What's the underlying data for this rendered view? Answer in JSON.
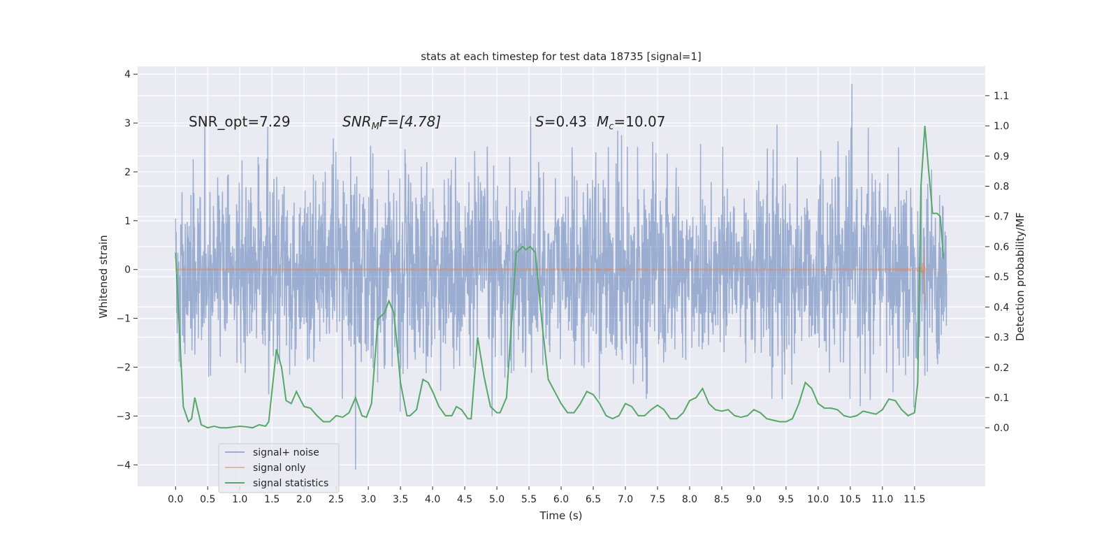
{
  "chart_data": {
    "type": "line",
    "title": "stats at each timestep for test data 18735 [signal=1]",
    "xlabel": "Time (s)",
    "ylabel": "Whitened strain",
    "ylabel_right": "Detection probability/MF",
    "xlim": [
      -0.59,
      12.6
    ],
    "ylim": [
      -4.44,
      4.16
    ],
    "ylim_right": [
      -0.194,
      1.197
    ],
    "grid": true,
    "x_ticks": [
      "0.0",
      "0.5",
      "1.0",
      "1.5",
      "2.0",
      "2.5",
      "3.0",
      "3.5",
      "4.0",
      "4.5",
      "5.0",
      "5.5",
      "6.0",
      "6.5",
      "7.0",
      "7.5",
      "8.0",
      "8.5",
      "9.0",
      "9.5",
      "10.0",
      "10.5",
      "11.0",
      "11.5"
    ],
    "y_ticks": [
      "4",
      "3",
      "2",
      "1",
      "0",
      "−1",
      "−2",
      "−3",
      "−4"
    ],
    "y_ticks_right": [
      "1.1",
      "1.0",
      "0.9",
      "0.8",
      "0.7",
      "0.6",
      "0.5",
      "0.4",
      "0.3",
      "0.2",
      "0.1",
      "0.0"
    ],
    "annotations": {
      "snr_opt": "SNR_opt=7.29",
      "snr_mf_main": "SNR",
      "snr_mf_sub": "M",
      "snr_mf_rest": "F=[4.78]",
      "s_var": "S",
      "s_val": "=0.43",
      "mc_var": "M",
      "mc_sub": "c",
      "mc_val": "=10.07"
    },
    "legend": {
      "placement": "lower-left",
      "entries": [
        "signal+ noise",
        "signal only",
        "signal statistics"
      ]
    },
    "colors": {
      "noise": "#4c72b0",
      "signal": "#dd8452",
      "statistics": "#55a868",
      "background": "#eaeaf2"
    },
    "series": [
      {
        "name": "signal+ noise",
        "axis": "left",
        "description_range": [
          -4.1,
          3.8
        ],
        "t_range": [
          0,
          12
        ]
      },
      {
        "name": "signal only",
        "axis": "left",
        "peak_time": 11.65,
        "peak_amplitude": 1.0
      },
      {
        "name": "signal statistics",
        "axis": "right",
        "x": [
          0,
          0.12,
          0.2,
          0.25,
          0.3,
          0.4,
          0.5,
          0.6,
          0.7,
          0.8,
          1.0,
          1.1,
          1.2,
          1.3,
          1.4,
          1.45,
          1.5,
          1.57,
          1.65,
          1.72,
          1.8,
          1.88,
          1.95,
          2.0,
          2.1,
          2.2,
          2.3,
          2.4,
          2.5,
          2.6,
          2.7,
          2.8,
          2.9,
          2.97,
          3.05,
          3.15,
          3.25,
          3.32,
          3.4,
          3.5,
          3.6,
          3.65,
          3.75,
          3.85,
          3.93,
          4.0,
          4.1,
          4.2,
          4.3,
          4.37,
          4.45,
          4.55,
          4.6,
          4.7,
          4.8,
          4.9,
          5.0,
          5.05,
          5.15,
          5.3,
          5.4,
          5.45,
          5.52,
          5.6,
          5.7,
          5.8,
          5.9,
          6.0,
          6.1,
          6.2,
          6.3,
          6.4,
          6.5,
          6.6,
          6.7,
          6.8,
          6.9,
          7.0,
          7.1,
          7.2,
          7.3,
          7.4,
          7.5,
          7.6,
          7.7,
          7.8,
          7.9,
          8.0,
          8.1,
          8.2,
          8.3,
          8.4,
          8.5,
          8.6,
          8.7,
          8.8,
          8.9,
          9.0,
          9.1,
          9.2,
          9.3,
          9.4,
          9.5,
          9.6,
          9.7,
          9.8,
          9.9,
          10.0,
          10.1,
          10.2,
          10.3,
          10.4,
          10.5,
          10.6,
          10.7,
          10.8,
          10.9,
          11.0,
          11.1,
          11.2,
          11.3,
          11.4,
          11.5,
          11.55,
          11.6,
          11.66,
          11.72,
          11.78,
          11.85,
          11.9,
          11.95
        ],
        "y": [
          0.58,
          0.07,
          0.02,
          0.03,
          0.1,
          0.01,
          0.0,
          0.005,
          0.0,
          0.0,
          0.005,
          0.003,
          0.0,
          0.01,
          0.005,
          0.02,
          0.12,
          0.26,
          0.2,
          0.09,
          0.08,
          0.12,
          0.09,
          0.07,
          0.065,
          0.04,
          0.02,
          0.02,
          0.04,
          0.035,
          0.05,
          0.1,
          0.04,
          0.035,
          0.08,
          0.36,
          0.38,
          0.42,
          0.38,
          0.15,
          0.04,
          0.04,
          0.06,
          0.16,
          0.15,
          0.12,
          0.07,
          0.04,
          0.04,
          0.07,
          0.06,
          0.03,
          0.03,
          0.3,
          0.17,
          0.07,
          0.05,
          0.05,
          0.1,
          0.58,
          0.6,
          0.59,
          0.6,
          0.58,
          0.35,
          0.16,
          0.12,
          0.08,
          0.05,
          0.05,
          0.08,
          0.12,
          0.11,
          0.08,
          0.04,
          0.03,
          0.04,
          0.08,
          0.07,
          0.04,
          0.04,
          0.06,
          0.075,
          0.06,
          0.03,
          0.03,
          0.05,
          0.09,
          0.1,
          0.13,
          0.08,
          0.06,
          0.055,
          0.06,
          0.04,
          0.035,
          0.04,
          0.06,
          0.05,
          0.03,
          0.025,
          0.02,
          0.02,
          0.03,
          0.08,
          0.15,
          0.13,
          0.08,
          0.065,
          0.065,
          0.06,
          0.04,
          0.035,
          0.04,
          0.055,
          0.05,
          0.045,
          0.06,
          0.095,
          0.09,
          0.06,
          0.04,
          0.05,
          0.15,
          0.8,
          1.0,
          0.85,
          0.71,
          0.71,
          0.7,
          0.56
        ]
      }
    ]
  }
}
